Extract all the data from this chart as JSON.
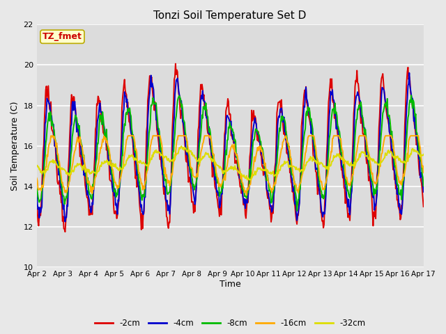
{
  "title": "Tonzi Soil Temperature Set D",
  "xlabel": "Time",
  "ylabel": "Soil Temperature (C)",
  "ylim": [
    10,
    22
  ],
  "yticks": [
    10,
    12,
    14,
    16,
    18,
    20,
    22
  ],
  "xlim": [
    0,
    15
  ],
  "xtick_labels": [
    "Apr 2",
    "Apr 3",
    "Apr 4",
    "Apr 5",
    "Apr 6",
    "Apr 7",
    "Apr 8",
    "Apr 9",
    "Apr 10",
    "Apr 11",
    "Apr 12",
    "Apr 13",
    "Apr 14",
    "Apr 15",
    "Apr 16",
    "Apr 17"
  ],
  "series_colors": [
    "#dd0000",
    "#0000cc",
    "#00bb00",
    "#ffaa00",
    "#dddd00"
  ],
  "series_labels": [
    "-2cm",
    "-4cm",
    "-8cm",
    "-16cm",
    "-32cm"
  ],
  "annotation_text": "TZ_fmet",
  "annotation_color": "#cc0000",
  "annotation_bg": "#ffffcc",
  "annotation_border": "#bbaa00",
  "plot_bg_color": "#dcdcdc",
  "fig_bg_color": "#e8e8e8",
  "grid_color": "#ffffff",
  "linewidth": 1.4,
  "n_points": 600
}
